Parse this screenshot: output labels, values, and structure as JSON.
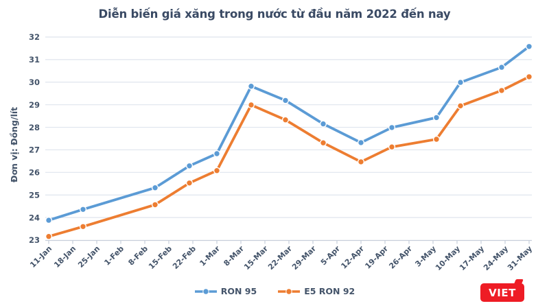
{
  "title": "Diễn biến giá xăng trong nước từ đầu năm 2022 đến nay",
  "chart_data": {
    "type": "line",
    "title": "Diễn biến giá xăng trong nước từ đầu năm 2022 đến nay",
    "xlabel": "",
    "ylabel": "Đơn vị: Đồng/lít",
    "ylim": [
      23,
      32
    ],
    "ytick_step": 1,
    "grid": "horizontal",
    "legend_position": "bottom",
    "x_range_days": [
      0,
      140
    ],
    "x_tick_interval_days": 7,
    "x_tick_labels": [
      "11-Jan",
      "18-Jan",
      "25-Jan",
      "1-Feb",
      "8-Feb",
      "15-Feb",
      "22-Feb",
      "1-Mar",
      "8-Mar",
      "15-Mar",
      "22-Mar",
      "29-Mar",
      "5-Apr",
      "12-Apr",
      "19-Apr",
      "26-Apr",
      "3-May",
      "10-May",
      "17-May",
      "24-May",
      "31-May"
    ],
    "series": [
      {
        "name": "RON 95",
        "color": "#5B9BD5",
        "point_dates": [
          "11-Jan",
          "21-Jan",
          "11-Feb",
          "21-Feb",
          "1-Mar",
          "11-Mar",
          "21-Mar",
          "1-Apr",
          "12-Apr",
          "21-Apr",
          "4-May",
          "11-May",
          "23-May",
          "31-May"
        ],
        "x_days": [
          0,
          10,
          31,
          41,
          49,
          59,
          69,
          80,
          91,
          100,
          113,
          120,
          132,
          140
        ],
        "values": [
          23.88,
          24.36,
          25.32,
          26.29,
          26.83,
          29.82,
          29.19,
          28.15,
          27.32,
          27.99,
          28.43,
          29.99,
          30.66,
          31.58
        ]
      },
      {
        "name": "E5 RON 92",
        "color": "#ED7D31",
        "point_dates": [
          "11-Jan",
          "21-Jan",
          "11-Feb",
          "21-Feb",
          "1-Mar",
          "11-Mar",
          "21-Mar",
          "1-Apr",
          "12-Apr",
          "21-Apr",
          "4-May",
          "11-May",
          "23-May",
          "31-May"
        ],
        "x_days": [
          0,
          10,
          31,
          41,
          49,
          59,
          69,
          80,
          91,
          100,
          113,
          120,
          132,
          140
        ],
        "values": [
          23.16,
          23.6,
          24.57,
          25.53,
          26.08,
          28.99,
          28.33,
          27.31,
          26.47,
          27.13,
          27.47,
          28.95,
          29.63,
          30.24
        ]
      }
    ]
  },
  "legend": {
    "items": [
      {
        "label": "RON 95",
        "color": "#5B9BD5"
      },
      {
        "label": "E5 RON 92",
        "color": "#ED7D31"
      }
    ]
  },
  "logo": {
    "text": "VIET",
    "bg_color": "#EE1C25",
    "text_color": "#FFFFFF"
  },
  "colors": {
    "background": "#FFFFFF",
    "title_text": "#3A4A64",
    "axis_text": "#44546A",
    "gridline": "#DFE4EE",
    "axis_line": "#C6CEDA",
    "ron95_blue": "#5B9BD5",
    "e5ron92_orange": "#ED7D31",
    "logo_red": "#EE1C25",
    "marker_halo": "#FFFFFF"
  }
}
